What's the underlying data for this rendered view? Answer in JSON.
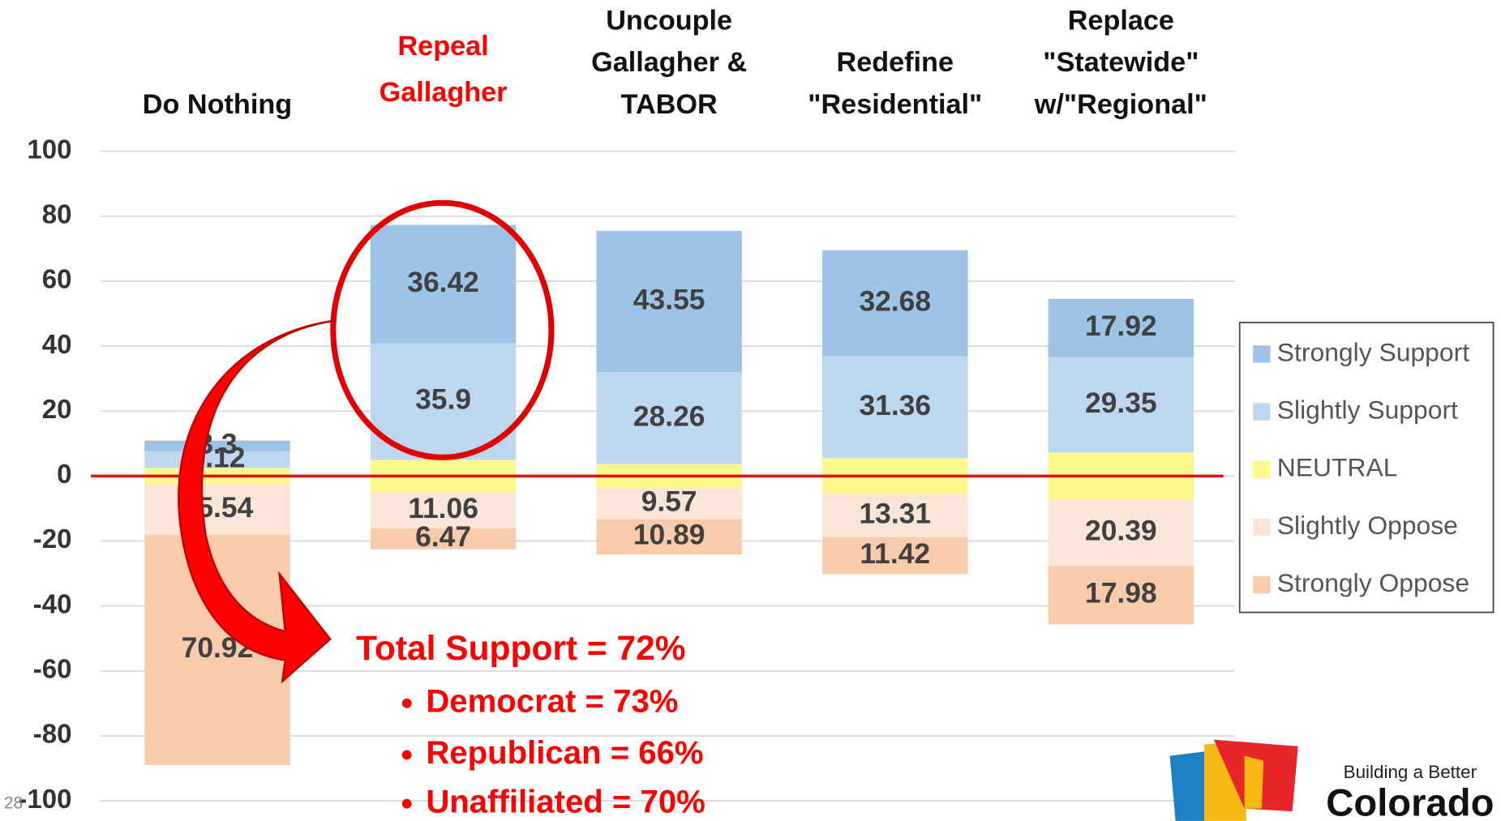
{
  "chart_data": {
    "type": "diverging_bar",
    "categories": [
      [
        "Do Nothing"
      ],
      [
        "Repeal",
        "Gallagher"
      ],
      [
        "Uncouple",
        "Gallagher &",
        "TABOR"
      ],
      [
        "Redefine",
        "\"Residential\""
      ],
      [
        "Replace",
        "\"Statewide\"",
        "w/\"Regional\""
      ]
    ],
    "highlight": 1,
    "highlight_color": "#ff0000",
    "series": [
      {
        "name": "Strongly Support",
        "color": "#9dc3e6",
        "side": "positive",
        "values": [
          3.3,
          36.42,
          43.55,
          32.68,
          17.92
        ]
      },
      {
        "name": "Slightly Support",
        "color": "#bdd7ee",
        "side": "positive",
        "values": [
          5.12,
          35.9,
          28.26,
          31.36,
          29.35
        ]
      },
      {
        "name": "NEUTRAL",
        "color": "#fdf98e",
        "side": "center",
        "values": [
          5,
          10,
          7.4,
          11,
          14.5
        ],
        "labels": false
      },
      {
        "name": "Slightly Oppose",
        "color": "#fbe5d6",
        "side": "negative",
        "values": [
          15.54,
          11.06,
          9.57,
          13.31,
          20.39
        ]
      },
      {
        "name": "Strongly Oppose",
        "color": "#f8cbad",
        "side": "negative",
        "values": [
          70.92,
          6.47,
          10.89,
          11.42,
          17.98
        ]
      }
    ],
    "ylim": [
      -100,
      100
    ],
    "yticks": [
      -100,
      -80,
      -60,
      -40,
      -20,
      0,
      20,
      40,
      60,
      80,
      100
    ],
    "grid": true,
    "zero_line_color": "#ff0000",
    "legend": "right",
    "annotations": {
      "total": "Total Support = 72%",
      "bullets": [
        "Democrat = 73%",
        "Republican = 66%",
        "Unaffiliated = 70%"
      ]
    }
  },
  "logo": {
    "line1": "Building a Better",
    "line2": "Colorado"
  },
  "page_number": "28"
}
